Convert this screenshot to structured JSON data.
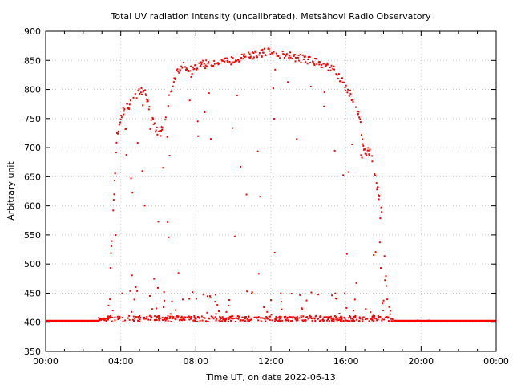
{
  "chart_data": {
    "type": "scatter",
    "title": "Total UV radiation intensity (uncalibrated). Metsähovi Radio Observatory",
    "xlabel": "Time UT, on date 2022-06-13",
    "ylabel": "Arbitrary unit",
    "xlim": [
      0,
      24
    ],
    "ylim": [
      350,
      900
    ],
    "x_tick_values": [
      0,
      4,
      8,
      12,
      16,
      20,
      24
    ],
    "x_tick_labels": [
      "00:00",
      "04:00",
      "08:00",
      "12:00",
      "16:00",
      "20:00",
      "00:00"
    ],
    "y_ticks": [
      350,
      400,
      450,
      500,
      550,
      600,
      650,
      700,
      750,
      800,
      850,
      900
    ],
    "grid": true,
    "series_color": "#ff0000",
    "baseline_segments": [
      {
        "from": 0.0,
        "to": 2.8,
        "y": 402
      },
      {
        "from": 18.5,
        "to": 24.0,
        "y": 402
      }
    ],
    "envelope": [
      [
        2.8,
        402
      ],
      [
        3.3,
        410
      ],
      [
        3.6,
        600
      ],
      [
        3.8,
        730
      ],
      [
        4.1,
        770
      ],
      [
        4.5,
        780
      ],
      [
        5.0,
        805
      ],
      [
        5.3,
        805
      ],
      [
        5.6,
        760
      ],
      [
        6.0,
        730
      ],
      [
        6.3,
        740
      ],
      [
        6.6,
        800
      ],
      [
        7.0,
        840
      ],
      [
        7.4,
        848
      ],
      [
        7.8,
        840
      ],
      [
        8.4,
        850
      ],
      [
        9.0,
        852
      ],
      [
        9.6,
        855
      ],
      [
        10.6,
        862
      ],
      [
        11.2,
        868
      ],
      [
        11.8,
        872
      ],
      [
        12.4,
        868
      ],
      [
        13.0,
        864
      ],
      [
        13.6,
        860
      ],
      [
        14.2,
        855
      ],
      [
        14.8,
        850
      ],
      [
        15.4,
        840
      ],
      [
        15.8,
        820
      ],
      [
        16.3,
        795
      ],
      [
        16.7,
        760
      ],
      [
        17.0,
        700
      ],
      [
        17.3,
        700
      ],
      [
        17.6,
        650
      ],
      [
        17.9,
        600
      ],
      [
        18.2,
        450
      ],
      [
        18.5,
        402
      ]
    ],
    "random_seed": 7
  }
}
